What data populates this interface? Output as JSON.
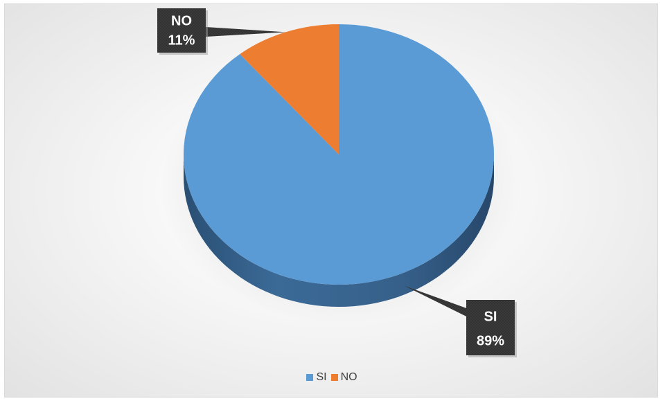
{
  "chart_data": {
    "type": "pie",
    "title": "",
    "categories": [
      "SI",
      "NO"
    ],
    "values": [
      89,
      11
    ],
    "unit": "%",
    "colors": [
      "#5b9bd5",
      "#ed7d31"
    ],
    "three_d": true,
    "legend_position": "bottom",
    "data_labels": [
      {
        "category": "SI",
        "value_text": "89%"
      },
      {
        "category": "NO",
        "value_text": "11%"
      }
    ]
  }
}
